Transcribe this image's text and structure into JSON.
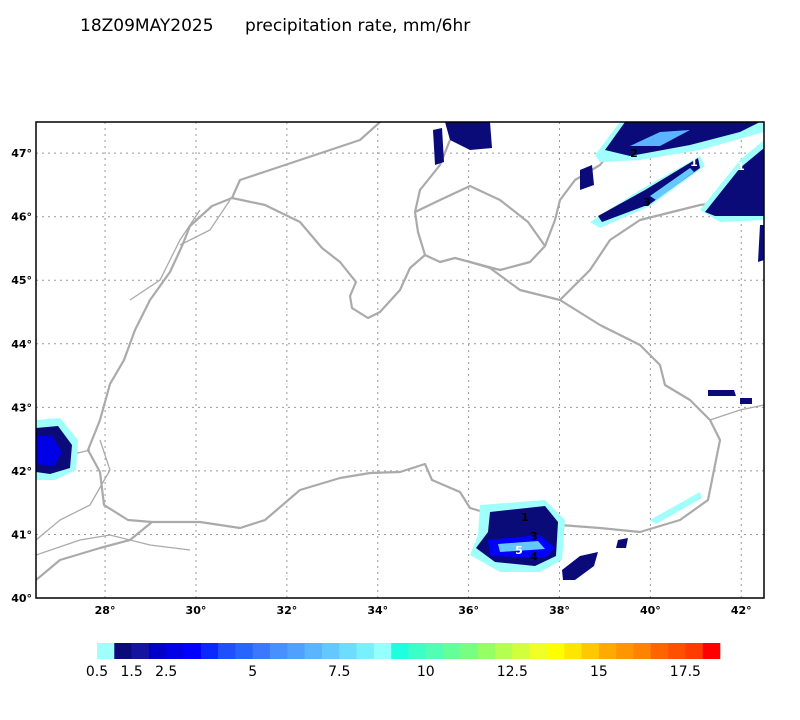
{
  "header": {
    "time": "18Z09MAY2025",
    "field": "precipitation rate, mm/6hr"
  },
  "map": {
    "lon_range": [
      26.48,
      42.5
    ],
    "lat_range": [
      40,
      47.49
    ],
    "lon_ticks": [
      {
        "value": 28,
        "label": "28°"
      },
      {
        "value": 30,
        "label": "30°"
      },
      {
        "value": 32,
        "label": "32°"
      },
      {
        "value": 34,
        "label": "34°"
      },
      {
        "value": 36,
        "label": "36°"
      },
      {
        "value": 38,
        "label": "38°"
      },
      {
        "value": 40,
        "label": "40°"
      },
      {
        "value": 42,
        "label": "42°"
      }
    ],
    "lat_ticks": [
      {
        "value": 40,
        "label": "40°"
      },
      {
        "value": 41,
        "label": "41°"
      },
      {
        "value": 42,
        "label": "42°"
      },
      {
        "value": 43,
        "label": "43°"
      },
      {
        "value": 44,
        "label": "44°"
      },
      {
        "value": 45,
        "label": "45°"
      },
      {
        "value": 46,
        "label": "46°"
      },
      {
        "value": 47,
        "label": "47°"
      }
    ],
    "contour_labels": [
      "1",
      "3",
      "5",
      "4",
      "2",
      "1",
      "3",
      "1"
    ]
  },
  "colorbar": {
    "range": [
      0.5,
      18.5
    ],
    "ticks": [
      0.5,
      1.5,
      2.5,
      5,
      7.5,
      10,
      12.5,
      15,
      17.5
    ],
    "colors": [
      "#a0fffa",
      "#0a0a78",
      "#1414a0",
      "#0000c8",
      "#0000e6",
      "#0000ff",
      "#0a28ff",
      "#1e50ff",
      "#2864ff",
      "#3c78ff",
      "#4690ff",
      "#50a0ff",
      "#5ab4ff",
      "#64c8ff",
      "#6edcff",
      "#78f0ff",
      "#96ffff",
      "#1effe0",
      "#3cffc8",
      "#50ffb4",
      "#64ff96",
      "#78ff82",
      "#96ff64",
      "#b4ff50",
      "#d2ff3c",
      "#f0ff28",
      "#ffff00",
      "#ffe600",
      "#ffc800",
      "#ffaa00",
      "#ff9600",
      "#ff8200",
      "#ff6400",
      "#ff5000",
      "#ff3c00",
      "#ff0000"
    ]
  }
}
